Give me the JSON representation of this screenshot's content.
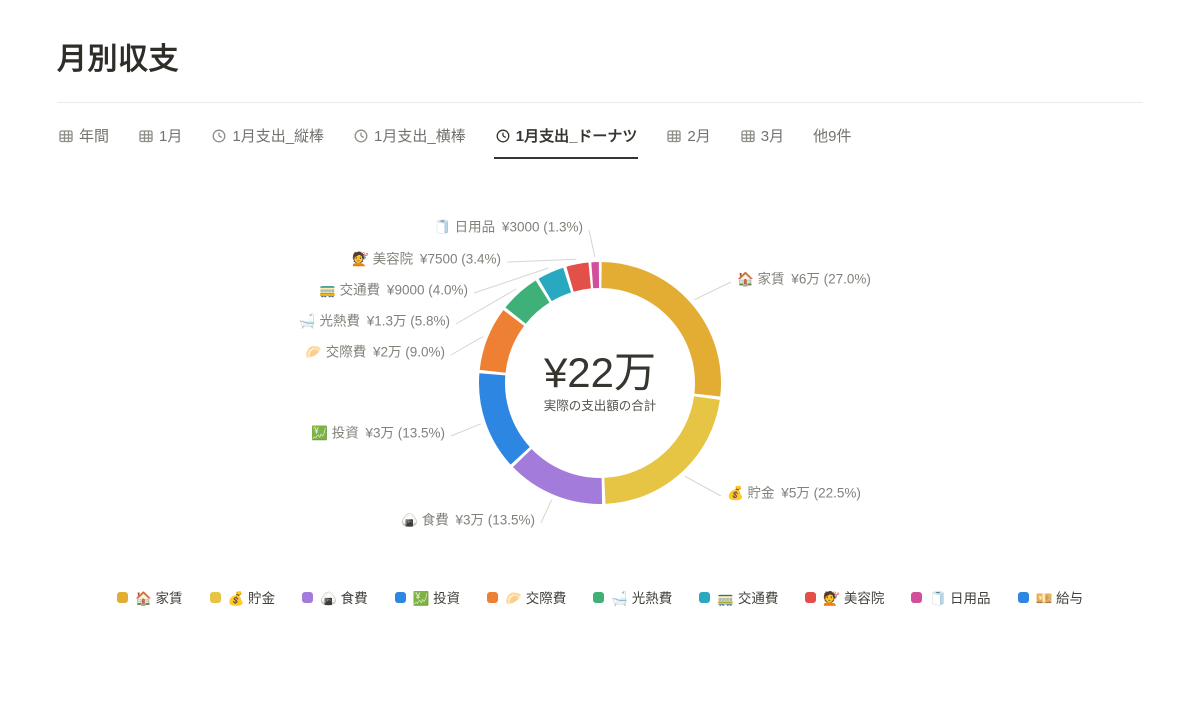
{
  "page": {
    "title": "月別収支"
  },
  "tabs": {
    "items": [
      {
        "label": "年間",
        "icon": "table-icon",
        "active": false
      },
      {
        "label": "1月",
        "icon": "table-icon",
        "active": false
      },
      {
        "label": "1月支出_縦棒",
        "icon": "clock-icon",
        "active": false
      },
      {
        "label": "1月支出_横棒",
        "icon": "clock-icon",
        "active": false
      },
      {
        "label": "1月支出_ドーナツ",
        "icon": "clock-icon",
        "active": true
      },
      {
        "label": "2月",
        "icon": "table-icon",
        "active": false
      },
      {
        "label": "3月",
        "icon": "table-icon",
        "active": false
      },
      {
        "label": "他9件",
        "icon": "none",
        "active": false
      }
    ]
  },
  "chart_data": {
    "type": "pie",
    "subtype": "donut",
    "center_value": "¥22万",
    "center_label": "実際の支出額の合計",
    "legend_position": "bottom",
    "slices": [
      {
        "name": "家賃",
        "emoji": "🏠",
        "value": 60000,
        "value_label": "¥6万",
        "percent": "27.0",
        "color": "#e3ad33"
      },
      {
        "name": "貯金",
        "emoji": "💰",
        "value": 50000,
        "value_label": "¥5万",
        "percent": "22.5",
        "color": "#e6c444"
      },
      {
        "name": "食費",
        "emoji": "🍙",
        "value": 30000,
        "value_label": "¥3万",
        "percent": "13.5",
        "color": "#a37cdb"
      },
      {
        "name": "投資",
        "emoji": "💹",
        "value": 30000,
        "value_label": "¥3万",
        "percent": "13.5",
        "color": "#2d87e2"
      },
      {
        "name": "交際費",
        "emoji": "🥟",
        "value": 20000,
        "value_label": "¥2万",
        "percent": "9.0",
        "color": "#ee8033"
      },
      {
        "name": "光熱費",
        "emoji": "🛁",
        "value": 13000,
        "value_label": "¥1.3万",
        "percent": "5.8",
        "color": "#3fb078"
      },
      {
        "name": "交通費",
        "emoji": "🚃",
        "value": 9000,
        "value_label": "¥9000",
        "percent": "4.0",
        "color": "#29a9c0"
      },
      {
        "name": "美容院",
        "emoji": "💇",
        "value": 7500,
        "value_label": "¥7500",
        "percent": "3.4",
        "color": "#e25049"
      },
      {
        "name": "日用品",
        "emoji": "🧻",
        "value": 3000,
        "value_label": "¥3000",
        "percent": "1.3",
        "color": "#d24f9b"
      }
    ],
    "legend": [
      {
        "label": "家賃",
        "emoji": "🏠",
        "color": "#e3ad33"
      },
      {
        "label": "貯金",
        "emoji": "💰",
        "color": "#e6c444"
      },
      {
        "label": "食費",
        "emoji": "🍙",
        "color": "#a37cdb"
      },
      {
        "label": "投資",
        "emoji": "💹",
        "color": "#2d87e2"
      },
      {
        "label": "交際費",
        "emoji": "🥟",
        "color": "#ee8033"
      },
      {
        "label": "光熱費",
        "emoji": "🛁",
        "color": "#3fb078"
      },
      {
        "label": "交通費",
        "emoji": "🚃",
        "color": "#29a9c0"
      },
      {
        "label": "美容院",
        "emoji": "💇",
        "color": "#e25049"
      },
      {
        "label": "日用品",
        "emoji": "🧻",
        "color": "#d24f9b"
      },
      {
        "label": "給与",
        "emoji": "💴",
        "color": "#2d87e2"
      }
    ]
  }
}
